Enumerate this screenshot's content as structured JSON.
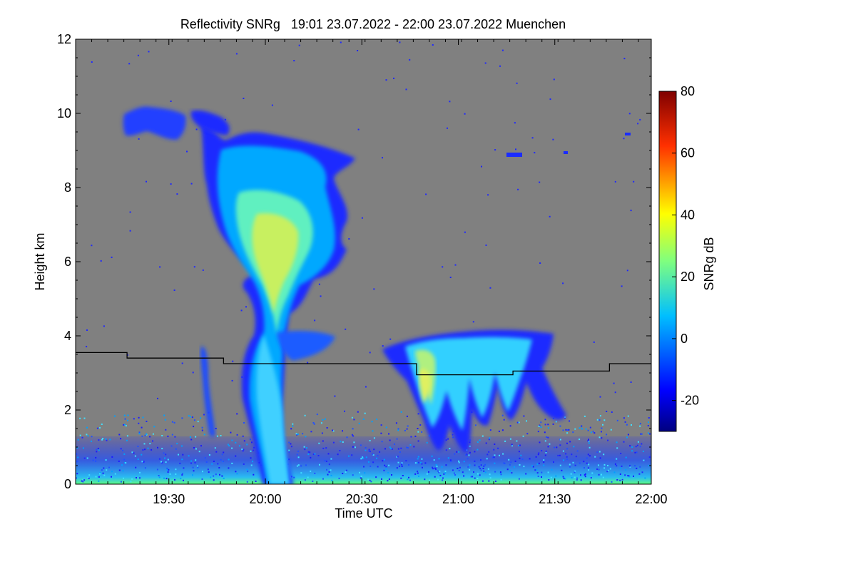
{
  "chart_data": {
    "type": "heatmap",
    "title": "Reflectivity SNRg   19:01 23.07.2022 - 22:00 23.07.2022 Muenchen",
    "xlabel": "Time UTC",
    "ylabel": "Height km",
    "x_range_minutes": [
      1141,
      1320
    ],
    "y_range_km": [
      0,
      12
    ],
    "x_ticks": [
      {
        "label": "19:30",
        "minutes": 1170
      },
      {
        "label": "20:00",
        "minutes": 1200
      },
      {
        "label": "20:30",
        "minutes": 1230
      },
      {
        "label": "21:00",
        "minutes": 1260
      },
      {
        "label": "21:30",
        "minutes": 1290
      },
      {
        "label": "22:00",
        "minutes": 1320
      }
    ],
    "y_ticks": [
      0,
      2,
      4,
      6,
      8,
      10,
      12
    ],
    "background_color": "#808080",
    "colorbar": {
      "label": "SNRg dB",
      "range": [
        -30,
        80
      ],
      "ticks": [
        -20,
        0,
        20,
        40,
        60,
        80
      ],
      "colormap": "jet"
    },
    "melting_layer_km": [
      {
        "from": "19:01",
        "to": "19:17",
        "height": 3.55
      },
      {
        "from": "19:17",
        "to": "19:47",
        "height": 3.4
      },
      {
        "from": "19:47",
        "to": "20:47",
        "height": 3.25
      },
      {
        "from": "20:47",
        "to": "21:17",
        "height": 2.95
      },
      {
        "from": "21:17",
        "to": "21:47",
        "height": 3.05
      },
      {
        "from": "21:47",
        "to": "22:00",
        "height": 3.25
      }
    ],
    "echoes": [
      {
        "name": "convective-column",
        "time_range": [
          "19:41",
          "20:31"
        ],
        "height_range_km": [
          0,
          9.3
        ],
        "peak_snr_db": 35
      },
      {
        "name": "upper-cirrus",
        "time_range": [
          "19:16",
          "19:36"
        ],
        "height_range_km": [
          9.4,
          10.2
        ],
        "peak_snr_db": -10
      },
      {
        "name": "stratiform-fallstreaks",
        "time_range": [
          "20:38",
          "21:34"
        ],
        "height_range_km": [
          1.6,
          4.0
        ],
        "peak_snr_db": 32
      },
      {
        "name": "surface-clutter",
        "time_range": [
          "19:01",
          "22:00"
        ],
        "height_range_km": [
          0,
          1.2
        ],
        "peak_snr_db": 10
      }
    ]
  }
}
